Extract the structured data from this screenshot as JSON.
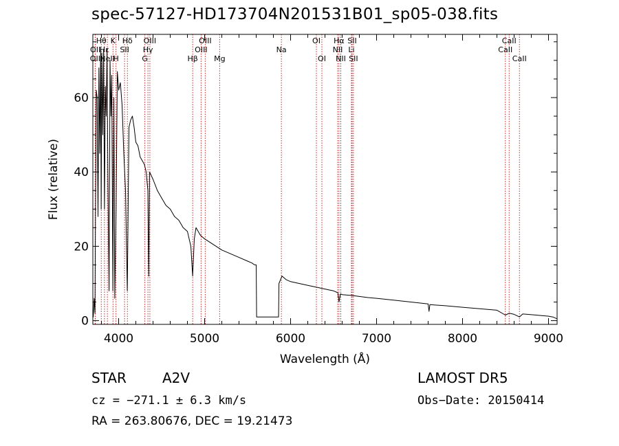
{
  "chart_data": {
    "type": "line",
    "title": "spec-57127-HD173704N201531B01_sp05-038.fits",
    "xlabel": "Wavelength (Å)",
    "ylabel": "Flux (relative)",
    "xlim": [
      3700,
      9100
    ],
    "ylim": [
      -1,
      77
    ],
    "xticks": [
      4000,
      5000,
      6000,
      7000,
      8000,
      9000
    ],
    "yticks": [
      0,
      20,
      40,
      60
    ],
    "grid": false,
    "series": [
      {
        "x": [
          3700,
          3705,
          3715,
          3725,
          3730,
          3735,
          3740,
          3750,
          3760,
          3770,
          3780,
          3790,
          3797,
          3805,
          3815,
          3825,
          3835,
          3845,
          3855,
          3865,
          3875,
          3889,
          3900,
          3910,
          3920,
          3933,
          3945,
          3955,
          3970,
          3985,
          4000,
          4020,
          4040,
          4060,
          4080,
          4101,
          4120,
          4140,
          4160,
          4180,
          4200,
          4225,
          4250,
          4275,
          4300,
          4320,
          4340,
          4350,
          4360,
          4380,
          4400,
          4450,
          4500,
          4550,
          4600,
          4650,
          4700,
          4750,
          4800,
          4840,
          4861,
          4880,
          4900,
          4950,
          5000,
          5100,
          5200,
          5300,
          5400,
          5500,
          5550,
          5580,
          5600,
          5605,
          5700,
          5800,
          5860,
          5865,
          5900,
          5950,
          6000,
          6100,
          6200,
          6300,
          6400,
          6500,
          6550,
          6563,
          6580,
          6600,
          6700,
          6800,
          6900,
          7000,
          7200,
          7400,
          7600,
          7610,
          7620,
          7800,
          8000,
          8200,
          8400,
          8498,
          8542,
          8600,
          8662,
          8700,
          8800,
          8900,
          9000,
          9050,
          9100
        ],
        "y": [
          3,
          1,
          6,
          2,
          28,
          45,
          62,
          60,
          28,
          68,
          45,
          73,
          30,
          72,
          50,
          73,
          30,
          63,
          55,
          73,
          38,
          8,
          70,
          55,
          66,
          8,
          60,
          6,
          30,
          67,
          62,
          64,
          58,
          45,
          35,
          8,
          52,
          54,
          55,
          52,
          48,
          47,
          44,
          43,
          42,
          40,
          35,
          12,
          40,
          39,
          38,
          35,
          33,
          31,
          30,
          28,
          27,
          25,
          24,
          20,
          12,
          22,
          25,
          23,
          22,
          20.5,
          19,
          18,
          17,
          16,
          15.5,
          15,
          15,
          1,
          1,
          1,
          1,
          10,
          12,
          11,
          10.5,
          10,
          9.5,
          9,
          8.5,
          8,
          7.5,
          5,
          7.2,
          7,
          6.8,
          6.5,
          6.2,
          6,
          5.5,
          5,
          4.5,
          2.5,
          4.3,
          4,
          3.6,
          3.2,
          2.8,
          1.5,
          2,
          1.7,
          1,
          1.8,
          1.6,
          1.4,
          1.2,
          1,
          0.5
        ]
      }
    ],
    "lines": [
      {
        "label": "Hβ",
        "x": 4861,
        "row": 3
      },
      {
        "label": "OIII",
        "x": 4959,
        "row": 2
      },
      {
        "label": "OIII",
        "x": 5007,
        "row": 1
      },
      {
        "label": "Mg",
        "x": 5175,
        "row": 3
      },
      {
        "label": "Na",
        "x": 5893,
        "row": 2
      },
      {
        "label": "OI",
        "x": 6300,
        "row": 1
      },
      {
        "label": "OI",
        "x": 6364,
        "row": 3
      },
      {
        "label": "NII",
        "x": 6548,
        "row": 2
      },
      {
        "label": "Hα",
        "x": 6563,
        "row": 1
      },
      {
        "label": "NII",
        "x": 6584,
        "row": 3
      },
      {
        "label": "SII",
        "x": 6716,
        "row": 1
      },
      {
        "label": "Li",
        "x": 6708,
        "row": 2
      },
      {
        "label": "SII",
        "x": 6731,
        "row": 3
      },
      {
        "label": "CaII",
        "x": 8498,
        "row": 2
      },
      {
        "label": "CaII",
        "x": 8542,
        "row": 1
      },
      {
        "label": "CaII",
        "x": 8662,
        "row": 3
      },
      {
        "label": "OII",
        "x": 3727,
        "row": 3
      },
      {
        "label": "OII",
        "x": 3729,
        "row": 2
      },
      {
        "label": "Hθ",
        "x": 3798,
        "row": 1
      },
      {
        "label": "Hε",
        "x": 3835,
        "row": 2
      },
      {
        "label": "K",
        "x": 3934,
        "row": 1
      },
      {
        "label": "NeII",
        "x": 3869,
        "row": 3
      },
      {
        "label": "H",
        "x": 3969,
        "row": 3
      },
      {
        "label": "Hδ",
        "x": 4102,
        "row": 1
      },
      {
        "label": "SII",
        "x": 4069,
        "row": 2
      },
      {
        "label": "OIII",
        "x": 4363,
        "row": 1
      },
      {
        "label": "Hγ",
        "x": 4341,
        "row": 2
      },
      {
        "label": "G",
        "x": 4305,
        "row": 3
      }
    ]
  },
  "info": {
    "object_class": "STAR",
    "subclass": "A2V",
    "survey": "LAMOST DR5",
    "cz": "cz = −271.1 ± 6.3 km/s",
    "obs_date": "Obs−Date: 20150414",
    "radec": "RA = 263.80676, DEC =  19.21473"
  },
  "colors": {
    "line": "#000000",
    "marker": "#cc2222"
  }
}
